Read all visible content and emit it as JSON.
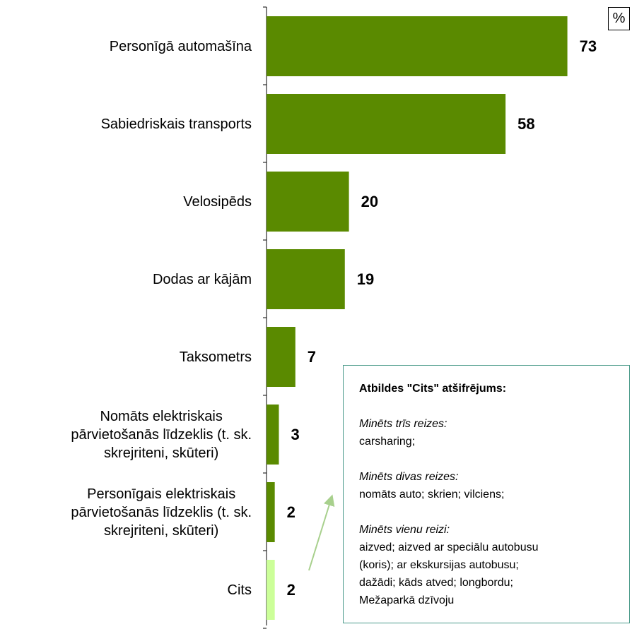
{
  "chart_data": {
    "type": "barh",
    "unit": "%",
    "categories": [
      "Personīgā automašīna",
      "Sabiedriskais transports",
      "Velosipēds",
      "Dodas ar kājām",
      "Taksometrs",
      "Nomāts elektriskais\npārvietošanās līdzeklis (t. sk.\nskrejriteni, skūteri)",
      "Personīgais elektriskais\npārvietošanās līdzeklis (t. sk.\nskrejriteni, skūteri)",
      "Cits"
    ],
    "values": [
      73,
      58,
      20,
      19,
      7,
      3,
      2,
      2
    ],
    "colors": [
      "#5a8a00",
      "#5a8a00",
      "#5a8a00",
      "#5a8a00",
      "#5a8a00",
      "#5a8a00",
      "#5a8a00",
      "#ccff99"
    ],
    "annotation": {
      "title": "Atbildes \"Cits\" atšifrējums:",
      "blocks": [
        {
          "heading": "Minēts trīs reizes:",
          "text": "carsharing;"
        },
        {
          "heading": "Minēts divas reizes:",
          "text": "nomāts auto; skrien; vilciens;"
        },
        {
          "heading": "Minēts vienu reizi:",
          "text": "aizved; aizved ar speciālu autobusu\n(koris); ar ekskursijas autobusu;\ndažādi; kāds atved; longbordu;\nMežaparkā dzīvoju"
        }
      ]
    }
  }
}
